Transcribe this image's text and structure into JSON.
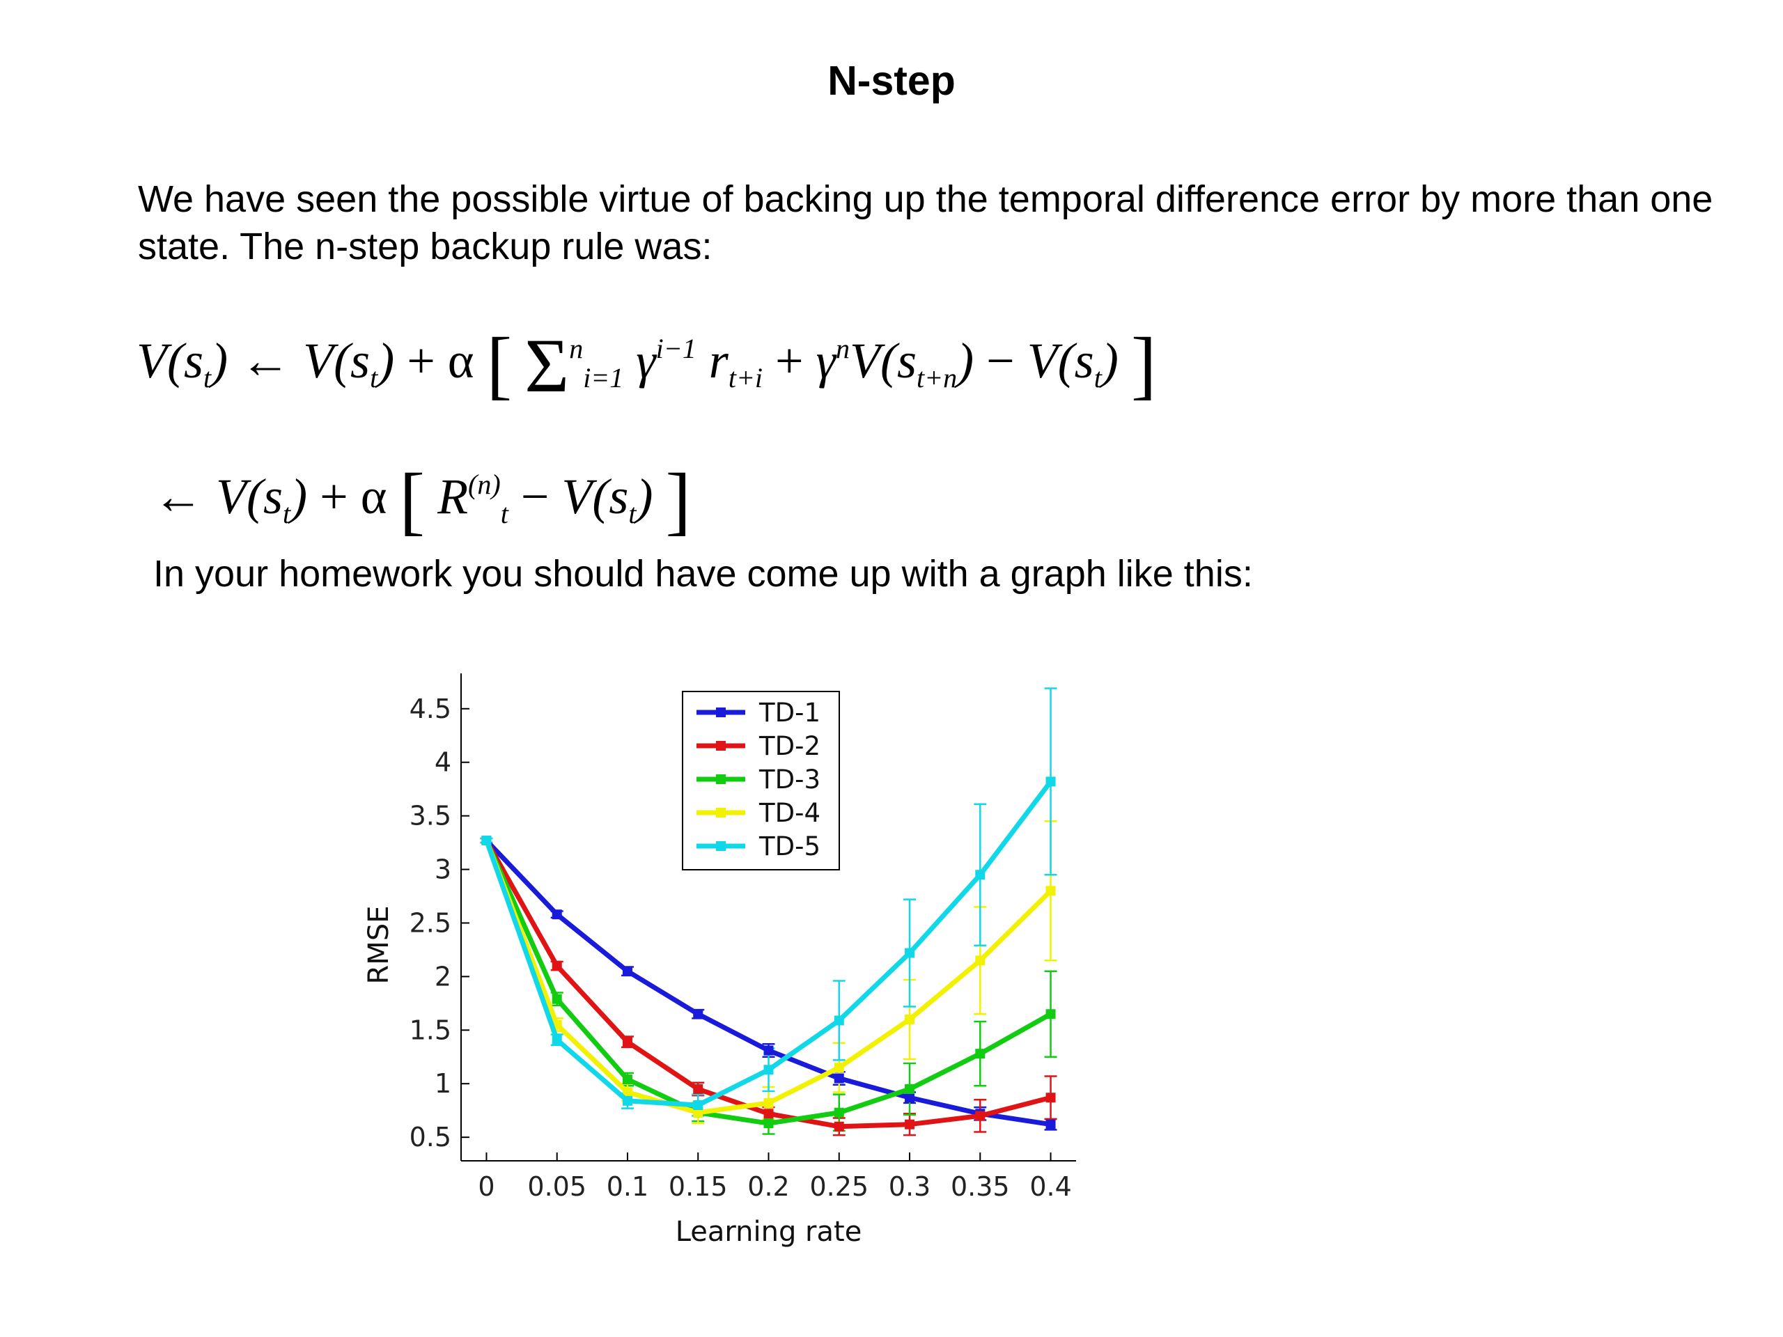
{
  "title": "N-step",
  "intro": "We have seen the possible virtue of backing up the temporal difference error by more than one state. The n-step backup rule was:",
  "homework": "In your homework you should have come up with a graph like this:",
  "equation1": {
    "lhs": "V(s",
    "t": "t",
    "i": "i",
    "n": "n",
    "one": "1",
    "r": "r",
    "v": "V(s",
    "sum_n": "n",
    "sum_lower": "i=1"
  },
  "equation2": {
    "lhs": "← V(s",
    "t": "t",
    "r": "R",
    "rsup": "(n)"
  },
  "chart_data": {
    "type": "line",
    "x": [
      0,
      0.05,
      0.1,
      0.15,
      0.2,
      0.25,
      0.3,
      0.35,
      0.4
    ],
    "x_tick_labels": [
      "0",
      "0.05",
      "0.1",
      "0.15",
      "0.2",
      "0.25",
      "0.3",
      "0.35",
      "0.4"
    ],
    "y_ticks": [
      0.5,
      1,
      1.5,
      2,
      2.5,
      3,
      3.5,
      4,
      4.5
    ],
    "y_tick_labels": [
      "0.5",
      "1",
      "1.5",
      "2",
      "2.5",
      "3",
      "3.5",
      "4",
      "4.5"
    ],
    "xlabel": "Learning rate",
    "ylabel": "RMSE",
    "xlim": [
      -0.018,
      0.418
    ],
    "ylim": [
      0.28,
      4.83
    ],
    "grid": false,
    "legend_position": "top-center",
    "series": [
      {
        "name": "TD-1",
        "color": "#1a1adb",
        "values": [
          3.27,
          2.58,
          2.05,
          1.65,
          1.31,
          1.05,
          0.87,
          0.72,
          0.62
        ],
        "errors": [
          0.02,
          0.03,
          0.04,
          0.04,
          0.06,
          0.06,
          0.05,
          0.06,
          0.05
        ]
      },
      {
        "name": "TD-2",
        "color": "#e01414",
        "values": [
          3.27,
          2.1,
          1.39,
          0.95,
          0.72,
          0.6,
          0.62,
          0.7,
          0.87
        ],
        "errors": [
          0.02,
          0.04,
          0.05,
          0.06,
          0.06,
          0.08,
          0.1,
          0.15,
          0.2
        ]
      },
      {
        "name": "TD-3",
        "color": "#12cc12",
        "values": [
          3.27,
          1.79,
          1.04,
          0.73,
          0.63,
          0.73,
          0.95,
          1.28,
          1.65
        ],
        "errors": [
          0.02,
          0.06,
          0.06,
          0.08,
          0.1,
          0.17,
          0.24,
          0.3,
          0.4
        ]
      },
      {
        "name": "TD-4",
        "color": "#f2f200",
        "values": [
          3.27,
          1.55,
          0.92,
          0.73,
          0.82,
          1.15,
          1.6,
          2.15,
          2.8
        ],
        "errors": [
          0.02,
          0.06,
          0.08,
          0.1,
          0.15,
          0.23,
          0.37,
          0.5,
          0.65
        ]
      },
      {
        "name": "TD-5",
        "color": "#10d8e8",
        "values": [
          3.27,
          1.41,
          0.84,
          0.8,
          1.13,
          1.59,
          2.22,
          2.95,
          3.82
        ],
        "errors": [
          0.02,
          0.05,
          0.07,
          0.1,
          0.2,
          0.37,
          0.5,
          0.66,
          0.87
        ]
      }
    ]
  }
}
